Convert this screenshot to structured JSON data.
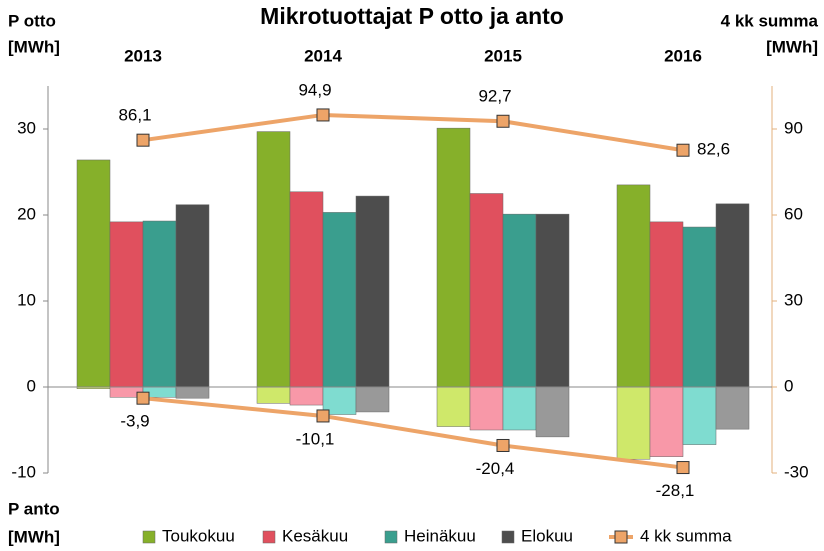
{
  "chart_data": {
    "type": "bar",
    "title": "Mikrotuottajat P otto ja anto",
    "y_label": [
      "P otto",
      "[MWh]"
    ],
    "y_label_negative": [
      "P anto",
      "[MWh]"
    ],
    "y2_label": [
      "4 kk summa",
      "[MWh]"
    ],
    "categories": [
      "2013",
      "2014",
      "2015",
      "2016"
    ],
    "ylim": [
      -10,
      35
    ],
    "yticks": [
      -10,
      0,
      10,
      20,
      30
    ],
    "y2lim": [
      -30,
      105
    ],
    "y2ticks": [
      -30,
      0,
      30,
      60,
      90
    ],
    "series": [
      {
        "name": "Toukokuu",
        "color": "#86b02a",
        "negative_color": "#cfe86a",
        "values": [
          26.4,
          29.7,
          30.1,
          23.5
        ],
        "negative_values": [
          -0.2,
          -1.9,
          -4.6,
          -8.4
        ]
      },
      {
        "name": "Kesäkuu",
        "color": "#e0505e",
        "negative_color": "#f898a8",
        "values": [
          19.2,
          22.7,
          22.5,
          19.2
        ],
        "negative_values": [
          -1.2,
          -2.1,
          -5.0,
          -8.1
        ]
      },
      {
        "name": "Heinäkuu",
        "color": "#3a9e8e",
        "negative_color": "#7fdcd0",
        "values": [
          19.3,
          20.3,
          20.1,
          18.6
        ],
        "negative_values": [
          -1.2,
          -3.2,
          -5.0,
          -6.7
        ]
      },
      {
        "name": "Elokuu",
        "color": "#4d4d4d",
        "negative_color": "#999999",
        "values": [
          21.2,
          22.2,
          20.1,
          21.3
        ],
        "negative_values": [
          -1.3,
          -2.9,
          -5.8,
          -4.9
        ]
      },
      {
        "name": "4 kk summa",
        "type": "line",
        "axis": "y2",
        "color": "#eda468",
        "values": [
          86.1,
          94.9,
          92.7,
          82.6
        ],
        "value_labels": [
          "86,1",
          "94,9",
          "92,7",
          "82,6"
        ],
        "negative_values": [
          -3.9,
          -10.1,
          -20.4,
          -28.1
        ],
        "negative_value_labels": [
          "-3,9",
          "-10,1",
          "-20,4",
          "-28,1"
        ]
      }
    ]
  }
}
